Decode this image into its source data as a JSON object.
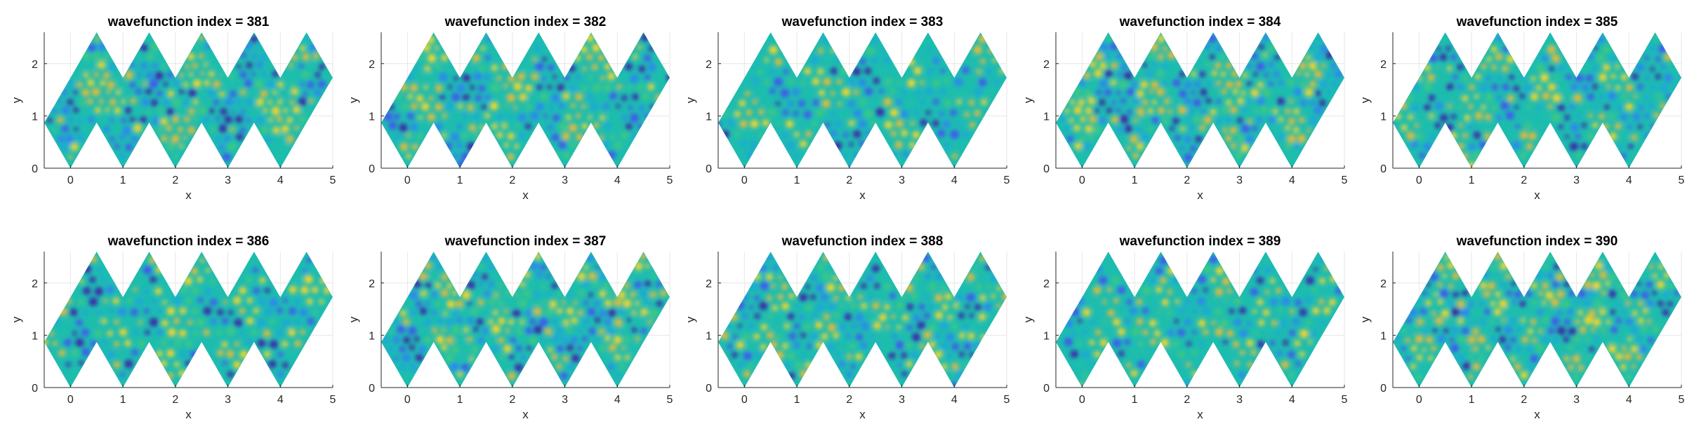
{
  "figure": {
    "background": "#ffffff",
    "colormap": [
      "#3e26a8",
      "#4352f2",
      "#2d83f3",
      "#1aa8d6",
      "#1bbfa7",
      "#3fc97f",
      "#a0c743",
      "#e5bb3a",
      "#f9d62a"
    ],
    "shape_color": "#1dbcb0"
  },
  "chart_data": [
    {
      "type": "heatmap",
      "title": "wavefunction index = 381",
      "xlabel": "x",
      "ylabel": "y",
      "xlim": [
        -0.5,
        5
      ],
      "ylim": [
        0,
        2.6
      ],
      "xticks": [
        "0",
        "1",
        "2",
        "3",
        "4",
        "5"
      ],
      "yticks": [
        "0",
        "1",
        "2"
      ],
      "grid": true
    },
    {
      "type": "heatmap",
      "title": "wavefunction index = 382",
      "xlabel": "x",
      "ylabel": "y",
      "xlim": [
        -0.5,
        5
      ],
      "ylim": [
        0,
        2.6
      ],
      "xticks": [
        "0",
        "1",
        "2",
        "3",
        "4",
        "5"
      ],
      "yticks": [
        "0",
        "1",
        "2"
      ],
      "grid": true
    },
    {
      "type": "heatmap",
      "title": "wavefunction index = 383",
      "xlabel": "x",
      "ylabel": "y",
      "xlim": [
        -0.5,
        5
      ],
      "ylim": [
        0,
        2.6
      ],
      "xticks": [
        "0",
        "1",
        "2",
        "3",
        "4",
        "5"
      ],
      "yticks": [
        "0",
        "1",
        "2"
      ],
      "grid": true
    },
    {
      "type": "heatmap",
      "title": "wavefunction index = 384",
      "xlabel": "x",
      "ylabel": "y",
      "xlim": [
        -0.5,
        5
      ],
      "ylim": [
        0,
        2.6
      ],
      "xticks": [
        "0",
        "1",
        "2",
        "3",
        "4",
        "5"
      ],
      "yticks": [
        "0",
        "1",
        "2"
      ],
      "grid": true
    },
    {
      "type": "heatmap",
      "title": "wavefunction index = 385",
      "xlabel": "x",
      "ylabel": "y",
      "xlim": [
        -0.5,
        5
      ],
      "ylim": [
        0,
        2.6
      ],
      "xticks": [
        "0",
        "1",
        "2",
        "3",
        "4",
        "5"
      ],
      "yticks": [
        "0",
        "1",
        "2"
      ],
      "grid": true
    },
    {
      "type": "heatmap",
      "title": "wavefunction index = 386",
      "xlabel": "x",
      "ylabel": "y",
      "xlim": [
        -0.5,
        5
      ],
      "ylim": [
        0,
        2.6
      ],
      "xticks": [
        "0",
        "1",
        "2",
        "3",
        "4",
        "5"
      ],
      "yticks": [
        "0",
        "1",
        "2"
      ],
      "grid": true
    },
    {
      "type": "heatmap",
      "title": "wavefunction index = 387",
      "xlabel": "x",
      "ylabel": "y",
      "xlim": [
        -0.5,
        5
      ],
      "ylim": [
        0,
        2.6
      ],
      "xticks": [
        "0",
        "1",
        "2",
        "3",
        "4",
        "5"
      ],
      "yticks": [
        "0",
        "1",
        "2"
      ],
      "grid": true
    },
    {
      "type": "heatmap",
      "title": "wavefunction index = 388",
      "xlabel": "x",
      "ylabel": "y",
      "xlim": [
        -0.5,
        5
      ],
      "ylim": [
        0,
        2.6
      ],
      "xticks": [
        "0",
        "1",
        "2",
        "3",
        "4",
        "5"
      ],
      "yticks": [
        "0",
        "1",
        "2"
      ],
      "grid": true
    },
    {
      "type": "heatmap",
      "title": "wavefunction index = 389",
      "xlabel": "x",
      "ylabel": "y",
      "xlim": [
        -0.5,
        5
      ],
      "ylim": [
        0,
        2.6
      ],
      "xticks": [
        "0",
        "1",
        "2",
        "3",
        "4",
        "5"
      ],
      "yticks": [
        "0",
        "1",
        "2"
      ],
      "grid": true
    },
    {
      "type": "heatmap",
      "title": "wavefunction index = 390",
      "xlabel": "x",
      "ylabel": "y",
      "xlim": [
        -0.5,
        5
      ],
      "ylim": [
        0,
        2.6
      ],
      "xticks": [
        "0",
        "1",
        "2",
        "3",
        "4",
        "5"
      ],
      "yticks": [
        "0",
        "1",
        "2"
      ],
      "grid": true
    }
  ]
}
